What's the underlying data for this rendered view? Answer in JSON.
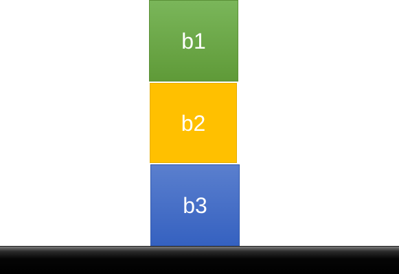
{
  "blocks": [
    {
      "label": "b1",
      "color": "#70ad47"
    },
    {
      "label": "b2",
      "color": "#ffc000"
    },
    {
      "label": "b3",
      "color": "#4472c4"
    }
  ],
  "ground": {
    "color": "#000000"
  }
}
